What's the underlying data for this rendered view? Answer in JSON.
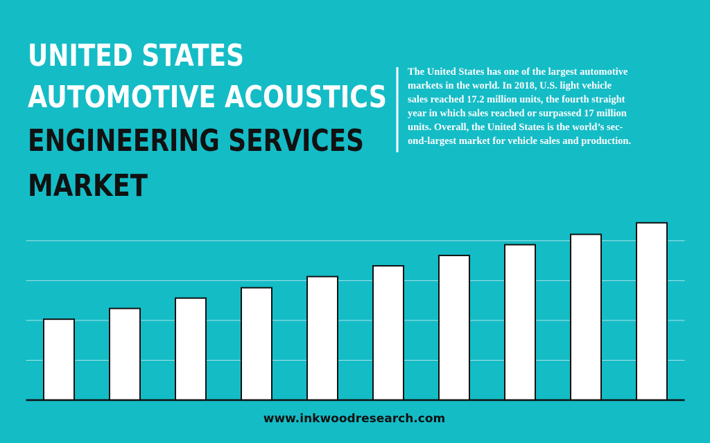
{
  "header": {
    "title_lines": [
      "UNITED STATES",
      "AUTOMOTIVE ACOUSTICS",
      "ENGINEERING SERVICES",
      "MARKET"
    ]
  },
  "description": {
    "lines": [
      "The United States has one of the largest automotive",
      "markets in the world. In 2018, U.S. light vehicle",
      "sales reached 17.2 million units, the fourth straight",
      "year in which sales reached or surpassed 17 million",
      "units. Overall, the United States is the world’s sec-",
      "ond-largest market for vehicle sales and production."
    ]
  },
  "footer": {
    "url": "www.inkwoodresearch.com"
  },
  "chart_data": {
    "type": "bar",
    "categories": [
      null,
      null,
      null,
      null,
      null,
      null,
      null,
      null,
      null,
      null
    ],
    "values": [
      2.03,
      2.3,
      2.56,
      2.82,
      3.1,
      3.37,
      3.63,
      3.9,
      4.16,
      4.45
    ],
    "color": "#ffffff",
    "ylim": [
      0,
      4.5
    ],
    "yticks": [
      1,
      2,
      3,
      4
    ],
    "grid": true
  }
}
